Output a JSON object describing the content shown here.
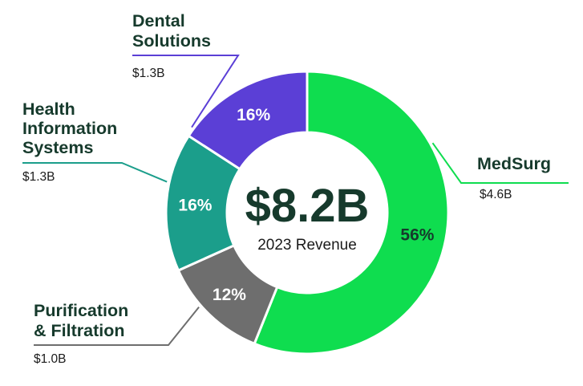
{
  "chart_data": {
    "type": "pie",
    "center": {
      "value": "$8.2B",
      "label": "2023 Revenue"
    },
    "slices": [
      {
        "name": "MedSurg",
        "value": 4.6,
        "value_label": "$4.6B",
        "percent_label": "56%",
        "color": "#0fdd4f",
        "text_color": "#163a2c"
      },
      {
        "name": "Purification & Filtration",
        "value": 1.0,
        "value_label": "$1.0B",
        "percent_label": "12%",
        "color": "#6e6e6e",
        "text_color": "#ffffff"
      },
      {
        "name": "Health Information Systems",
        "value": 1.3,
        "value_label": "$1.3B",
        "percent_label": "16%",
        "color": "#1b9e8b",
        "text_color": "#ffffff"
      },
      {
        "name": "Dental Solutions",
        "value": 1.3,
        "value_label": "$1.3B",
        "percent_label": "16%",
        "color": "#5b3fd6",
        "text_color": "#ffffff"
      }
    ]
  }
}
